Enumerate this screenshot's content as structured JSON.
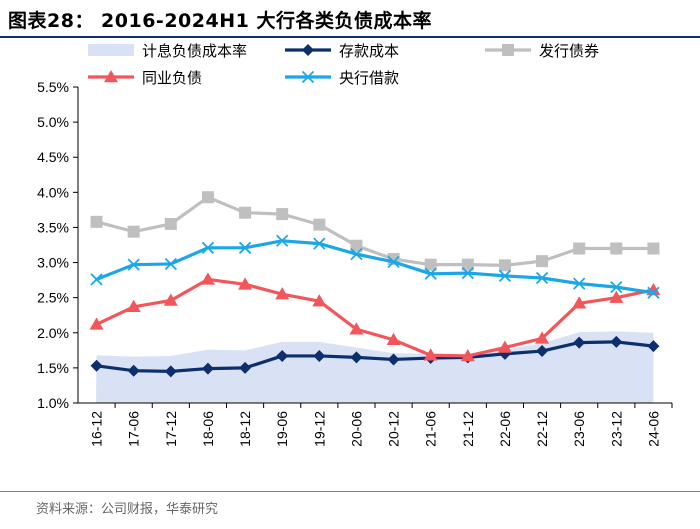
{
  "header": {
    "title": "图表28： 2016-2024H1 大行各类负债成本率"
  },
  "footer": {
    "source": "资料来源：公司财报，华泰研究"
  },
  "colors": {
    "area": "#d9e2f5",
    "deposit": "#0d2f6e",
    "bond": "#bfbfbf",
    "interbank": "#f2555a",
    "central": "#1aa7e8"
  },
  "chart_data": {
    "type": "line",
    "title": "2016-2024H1 大行各类负债成本率",
    "xlabel": "",
    "ylabel": "",
    "ylim": [
      1.0,
      5.5
    ],
    "yticks": [
      "1.0%",
      "1.5%",
      "2.0%",
      "2.5%",
      "3.0%",
      "3.5%",
      "4.0%",
      "4.5%",
      "5.0%",
      "5.5%"
    ],
    "categories": [
      "16-12",
      "17-06",
      "17-12",
      "18-06",
      "18-12",
      "19-06",
      "19-12",
      "20-06",
      "20-12",
      "21-06",
      "21-12",
      "22-06",
      "22-12",
      "23-06",
      "23-12",
      "24-06"
    ],
    "series": [
      {
        "name": "计息负债成本率",
        "kind": "area",
        "color": "#d9e2f5",
        "values": [
          1.68,
          1.66,
          1.67,
          1.76,
          1.75,
          1.87,
          1.87,
          1.79,
          1.71,
          1.7,
          1.7,
          1.76,
          1.85,
          2.01,
          2.02,
          2.0
        ]
      },
      {
        "name": "存款成本",
        "kind": "line",
        "marker": "diamond",
        "color": "#0d2f6e",
        "values": [
          1.53,
          1.46,
          1.45,
          1.49,
          1.5,
          1.67,
          1.67,
          1.65,
          1.62,
          1.64,
          1.65,
          1.7,
          1.74,
          1.86,
          1.87,
          1.81
        ]
      },
      {
        "name": "发行债券",
        "kind": "line",
        "marker": "square",
        "color": "#bfbfbf",
        "values": [
          3.58,
          3.44,
          3.55,
          3.93,
          3.71,
          3.69,
          3.54,
          3.24,
          3.05,
          2.97,
          2.97,
          2.96,
          3.02,
          3.2,
          3.2,
          3.2
        ]
      },
      {
        "name": "同业负债",
        "kind": "line",
        "marker": "triangle",
        "color": "#f2555a",
        "values": [
          2.12,
          2.37,
          2.46,
          2.76,
          2.69,
          2.55,
          2.45,
          2.05,
          1.9,
          1.68,
          1.67,
          1.79,
          1.92,
          2.42,
          2.5,
          2.61
        ]
      },
      {
        "name": "央行借款",
        "kind": "line",
        "marker": "x",
        "color": "#1aa7e8",
        "values": [
          2.76,
          2.97,
          2.98,
          3.21,
          3.21,
          3.31,
          3.27,
          3.12,
          3.01,
          2.84,
          2.85,
          2.81,
          2.78,
          2.7,
          2.65,
          2.57
        ]
      }
    ]
  }
}
